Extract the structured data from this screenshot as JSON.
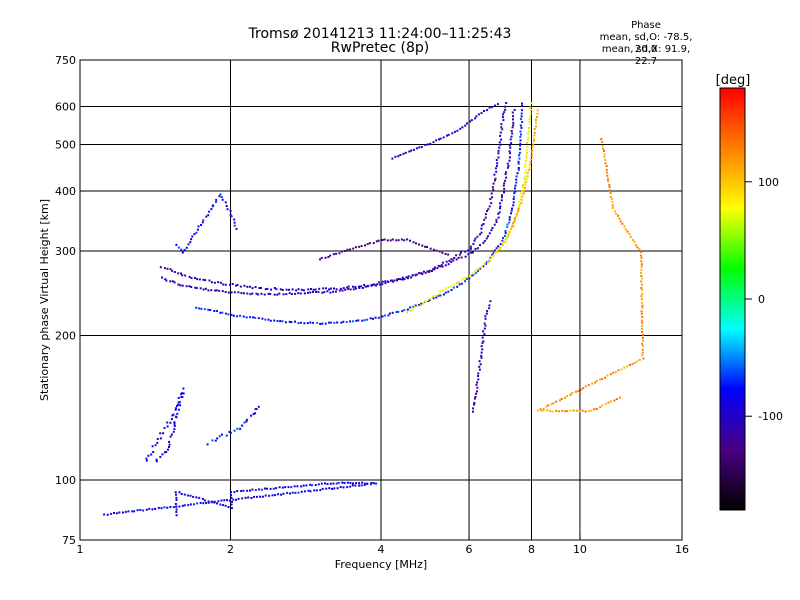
{
  "chart_data": {
    "type": "scatter",
    "title": "Tromsø 20141213 11:24:00–11:25:43",
    "subtitle": "RwPretec (8p)",
    "xlabel": "Frequency [MHz]",
    "ylabel": "Stationary phase Virtual Height [km]",
    "x_scale": "log",
    "y_scale": "log",
    "xlim": [
      1,
      16
    ],
    "ylim": [
      75,
      750
    ],
    "x_ticks": [
      1,
      2,
      4,
      6,
      8,
      10,
      16
    ],
    "y_ticks": [
      75,
      100,
      200,
      300,
      400,
      500,
      600,
      750
    ],
    "grid": true,
    "stats": {
      "header": "Phase",
      "o_mode": "mean, sd,O: -78.5, 20.0",
      "x_mode": "mean, sd,X:  91.9, 22.7"
    },
    "colorbar": {
      "label": "[deg]",
      "range": [
        -180,
        180
      ],
      "ticks": [
        100,
        0,
        -100
      ],
      "colors": [
        "#000000",
        "#4b0082",
        "#0000ff",
        "#00ffff",
        "#00ff00",
        "#ffff00",
        "#ff7f00",
        "#ff0000"
      ]
    },
    "series": [
      {
        "trace": [
          [
            1.45,
            265
          ],
          [
            1.6,
            255
          ],
          [
            1.8,
            250
          ],
          [
            2.0,
            247
          ],
          [
            2.4,
            245
          ],
          [
            2.8,
            246
          ],
          [
            3.2,
            248
          ],
          [
            3.6,
            252
          ],
          [
            4.0,
            258
          ],
          [
            4.5,
            265
          ],
          [
            5.0,
            275
          ],
          [
            5.5,
            290
          ],
          [
            6.0,
            305
          ],
          [
            6.3,
            330
          ],
          [
            6.6,
            380
          ],
          [
            6.8,
            460
          ],
          [
            7.0,
            580
          ],
          [
            7.1,
            620
          ]
        ],
        "phase": -110,
        "jitter": 0.03
      },
      {
        "trace": [
          [
            1.45,
            280
          ],
          [
            1.6,
            268
          ],
          [
            1.9,
            258
          ],
          [
            2.3,
            252
          ],
          [
            2.8,
            250
          ],
          [
            3.3,
            252
          ],
          [
            3.8,
            256
          ],
          [
            4.3,
            263
          ],
          [
            4.9,
            272
          ],
          [
            5.5,
            285
          ],
          [
            6.1,
            300
          ],
          [
            6.5,
            320
          ],
          [
            6.8,
            350
          ],
          [
            7.0,
            400
          ],
          [
            7.2,
            480
          ],
          [
            7.35,
            600
          ]
        ],
        "phase": -105,
        "jitter": 0.03
      },
      {
        "trace": [
          [
            1.7,
            230
          ],
          [
            2.0,
            222
          ],
          [
            2.5,
            215
          ],
          [
            3.0,
            213
          ],
          [
            3.5,
            215
          ],
          [
            4.0,
            220
          ],
          [
            4.5,
            228
          ],
          [
            5.0,
            238
          ],
          [
            5.5,
            250
          ],
          [
            6.0,
            265
          ],
          [
            6.5,
            285
          ],
          [
            7.0,
            320
          ],
          [
            7.3,
            370
          ],
          [
            7.5,
            450
          ],
          [
            7.6,
            560
          ],
          [
            7.65,
            620
          ]
        ],
        "phase": -75,
        "jitter": 0.025
      },
      {
        "trace": [
          [
            4.5,
            225
          ],
          [
            5.0,
            240
          ],
          [
            5.5,
            255
          ],
          [
            6.0,
            268
          ],
          [
            6.5,
            285
          ],
          [
            7.0,
            310
          ],
          [
            7.4,
            350
          ],
          [
            7.7,
            420
          ],
          [
            7.85,
            520
          ],
          [
            7.95,
            620
          ]
        ],
        "phase": 80,
        "jitter": 0.025
      },
      {
        "trace": [
          [
            6.8,
            300
          ],
          [
            7.2,
            330
          ],
          [
            7.6,
            380
          ],
          [
            7.9,
            450
          ],
          [
            8.1,
            540
          ],
          [
            8.2,
            600
          ]
        ],
        "phase": 110,
        "jitter": 0.02
      },
      {
        "trace": [
          [
            3.0,
            290
          ],
          [
            3.5,
            305
          ],
          [
            4.0,
            318
          ],
          [
            4.5,
            318
          ],
          [
            5.0,
            305
          ],
          [
            5.5,
            295
          ]
        ],
        "phase": -125,
        "jitter": 0.02
      },
      {
        "trace": [
          [
            4.2,
            470
          ],
          [
            5.0,
            505
          ],
          [
            5.8,
            545
          ],
          [
            6.4,
            590
          ],
          [
            6.9,
            615
          ]
        ],
        "phase": -100,
        "jitter": 0.02
      },
      {
        "trace": [
          [
            1.35,
            110
          ],
          [
            1.45,
            125
          ],
          [
            1.55,
            140
          ],
          [
            1.6,
            155
          ],
          [
            1.5,
            118
          ],
          [
            1.4,
            108
          ]
        ],
        "phase": -90,
        "jitter": 0.05
      },
      {
        "trace": [
          [
            1.8,
            120
          ],
          [
            1.95,
            125
          ],
          [
            2.1,
            130
          ],
          [
            2.2,
            138
          ],
          [
            2.3,
            145
          ]
        ],
        "phase": -80,
        "jitter": 0.05
      },
      {
        "trace": [
          [
            6.1,
            140
          ],
          [
            6.3,
            180
          ],
          [
            6.45,
            220
          ],
          [
            6.6,
            240
          ]
        ],
        "phase": -110,
        "jitter": 0.03
      },
      {
        "trace": [
          [
            1.55,
            85
          ],
          [
            1.55,
            95
          ],
          [
            2.0,
            88
          ],
          [
            2.0,
            95
          ],
          [
            3.2,
            99
          ],
          [
            3.6,
            99
          ],
          [
            3.9,
            99
          ],
          [
            1.1,
            85
          ]
        ],
        "phase": -85,
        "jitter": 0.02
      },
      {
        "trace": [
          [
            1.55,
            310
          ],
          [
            1.6,
            300
          ],
          [
            1.9,
            395
          ],
          [
            2.0,
            360
          ],
          [
            2.05,
            330
          ]
        ],
        "phase": -80,
        "jitter": 0.03
      },
      {
        "trace": [
          [
            11.0,
            515
          ],
          [
            11.6,
            370
          ],
          [
            12.4,
            330
          ],
          [
            13.2,
            300
          ],
          [
            13.3,
            180
          ],
          [
            8.2,
            140
          ],
          [
            10.5,
            140
          ],
          [
            12.1,
            150
          ]
        ],
        "phase": 120,
        "jitter": 0.02
      }
    ]
  }
}
